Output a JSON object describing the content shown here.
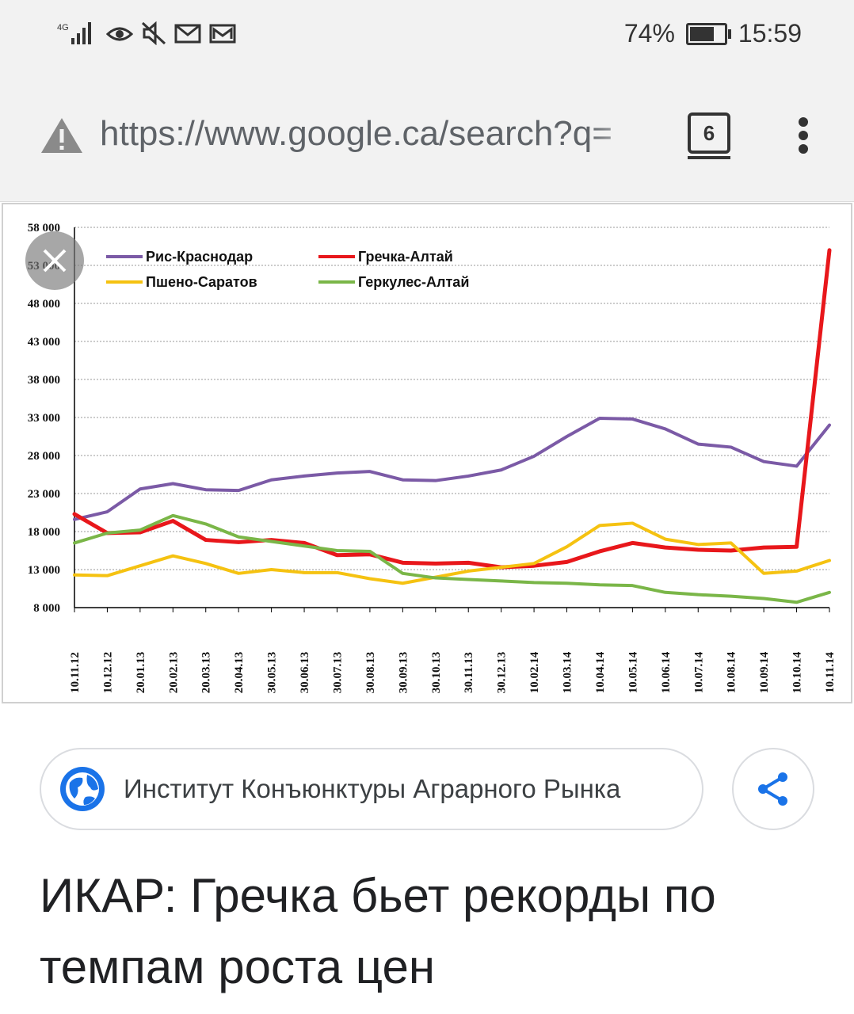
{
  "status_bar": {
    "network": "4G",
    "battery_percent": "74%",
    "battery_level": 0.74,
    "time": "15:59",
    "icons": [
      "signal-icon",
      "eye-icon",
      "mute-icon",
      "mail-icon",
      "gmail-icon"
    ]
  },
  "browser": {
    "url": "https://www.google.ca/search?q=",
    "tab_count": "6",
    "icons": [
      "warning-icon",
      "tabs-icon",
      "menu-dots-icon"
    ]
  },
  "chart_data": {
    "type": "line",
    "title": "",
    "xlabel": "",
    "ylabel": "",
    "ylim": [
      8000,
      58000
    ],
    "y_ticks": [
      "8 000",
      "13 000",
      "18 000",
      "23 000",
      "28 000",
      "33 000",
      "38 000",
      "43 000",
      "48 000",
      "53 000",
      "58 000"
    ],
    "categories": [
      "10.11.12",
      "10.12.12",
      "20.01.13",
      "20.02.13",
      "20.03.13",
      "20.04.13",
      "30.05.13",
      "30.06.13",
      "30.07.13",
      "30.08.13",
      "30.09.13",
      "30.10.13",
      "30.11.13",
      "30.12.13",
      "10.02.14",
      "10.03.14",
      "10.04.14",
      "10.05.14",
      "10.06.14",
      "10.07.14",
      "10.08.14",
      "10.09.14",
      "10.10.14",
      "10.11.14"
    ],
    "grid": "horizontal dotted",
    "legend": "top-left",
    "series": [
      {
        "name": "Рис-Краснодар",
        "color": "#7b5aa6",
        "values": [
          19600,
          20600,
          23600,
          24300,
          23500,
          23400,
          24800,
          25300,
          25700,
          25900,
          24800,
          24700,
          25300,
          26100,
          27900,
          30500,
          32900,
          32800,
          31500,
          29500,
          29100,
          27200,
          26600,
          32000
        ]
      },
      {
        "name": "Гречка-Алтай",
        "color": "#e8171b",
        "values": [
          20300,
          17800,
          17900,
          19400,
          16900,
          16600,
          16900,
          16500,
          14900,
          15000,
          13900,
          13800,
          13900,
          13300,
          13500,
          14000,
          15400,
          16500,
          15900,
          15600,
          15500,
          15900,
          16000,
          55000
        ]
      },
      {
        "name": "Пшено-Саратов",
        "color": "#f5c211",
        "values": [
          12300,
          12200,
          13500,
          14800,
          13800,
          12500,
          13000,
          12600,
          12600,
          11800,
          11200,
          12000,
          12800,
          13300,
          13800,
          16000,
          18800,
          19100,
          17000,
          16300,
          16500,
          12500,
          12800,
          14200
        ]
      },
      {
        "name": "Геркулес-Алтай",
        "color": "#7ab648",
        "values": [
          16500,
          17800,
          18200,
          20100,
          19000,
          17300,
          16700,
          16100,
          15500,
          15400,
          12500,
          11900,
          11700,
          11500,
          11300,
          11200,
          11000,
          10900,
          10000,
          9700,
          9500,
          9200,
          8700,
          10000
        ]
      }
    ]
  },
  "result": {
    "source_name": "Институт Конъюнктуры Аграрного Рынка",
    "title_line1": "ИКАР: Гречка бьет рекорды по",
    "title_line2": "темпам роста цен",
    "icons": [
      "globe-icon",
      "share-icon",
      "close-icon"
    ]
  }
}
